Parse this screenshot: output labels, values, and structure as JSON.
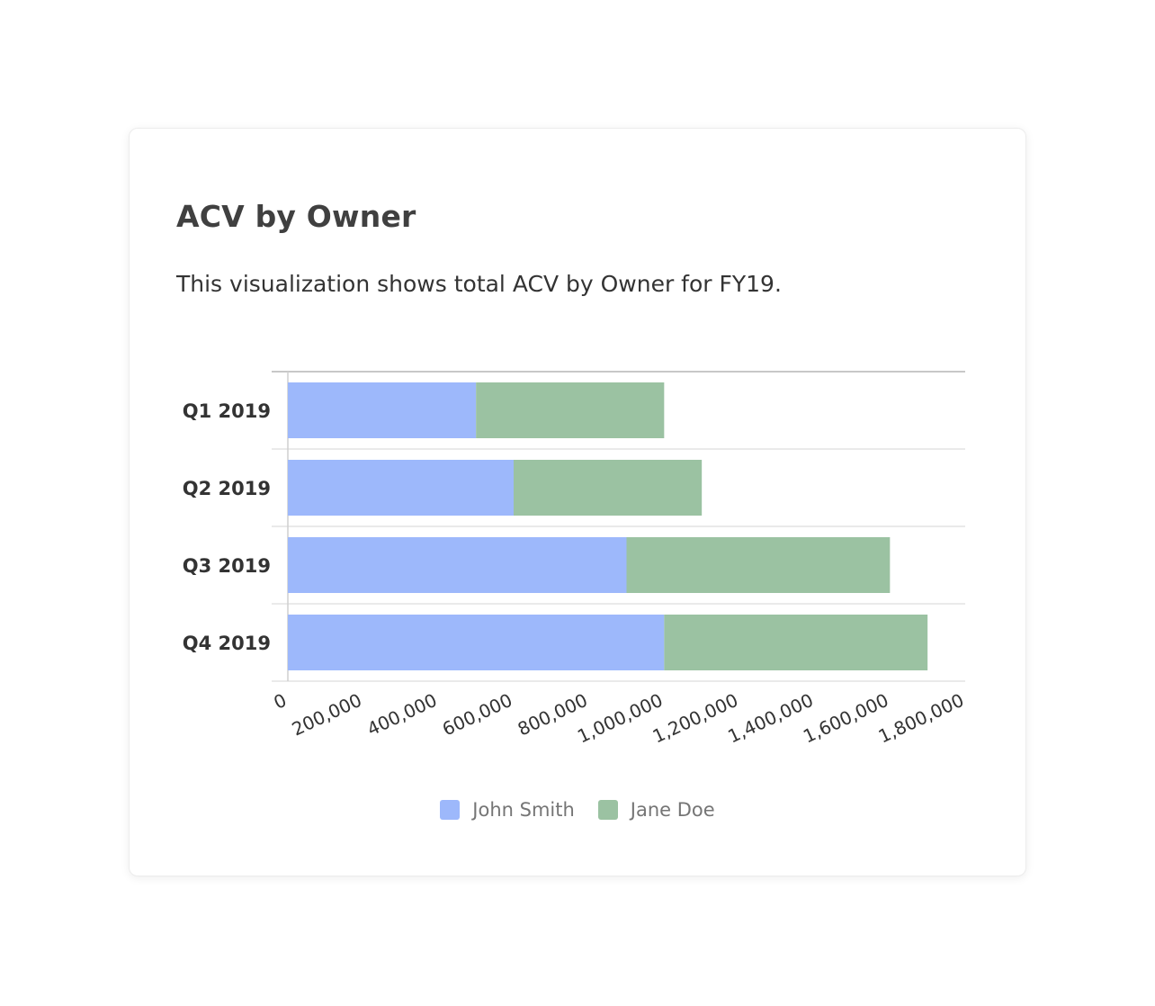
{
  "card": {
    "title": "ACV by Owner",
    "description": "This visualization shows total ACV by Owner for FY19."
  },
  "colors": {
    "john": "#9db8fb",
    "jane": "#9bc2a2"
  },
  "chart_data": {
    "type": "bar",
    "orientation": "horizontal",
    "stacked": true,
    "categories": [
      "Q1 2019",
      "Q2 2019",
      "Q3 2019",
      "Q4 2019"
    ],
    "series": [
      {
        "name": "John Smith",
        "values": [
          500000,
          600000,
          900000,
          1000000
        ]
      },
      {
        "name": "Jane Doe",
        "values": [
          500000,
          500000,
          700000,
          700000
        ]
      }
    ],
    "xlim": [
      0,
      1800000
    ],
    "x_ticks": [
      0,
      200000,
      400000,
      600000,
      800000,
      1000000,
      1200000,
      1400000,
      1600000,
      1800000
    ],
    "x_tick_labels": [
      "0",
      "200,000",
      "400,000",
      "600,000",
      "800,000",
      "1,000,000",
      "1,200,000",
      "1,400,000",
      "1,600,000",
      "1,800,000"
    ],
    "legend": {
      "position": "bottom"
    },
    "grid": "horizontal-category-separators"
  }
}
